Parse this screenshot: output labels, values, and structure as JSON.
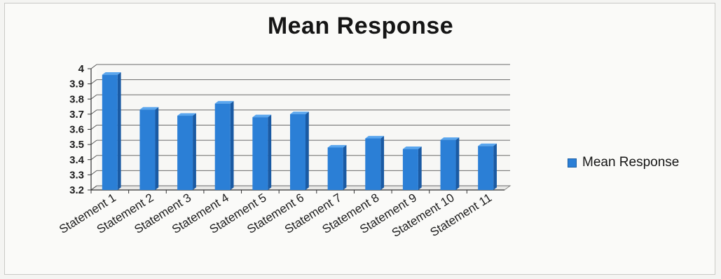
{
  "chart_data": {
    "type": "bar",
    "title": "Mean Response",
    "xlabel": "",
    "ylabel": "",
    "categories": [
      "Statement 1",
      "Statement 2",
      "Statement 3",
      "Statement 4",
      "Statement 5",
      "Statement 6",
      "Statement 7",
      "Statement 8",
      "Statement 9",
      "Statement 10",
      "Statement 11"
    ],
    "series": [
      {
        "name": "Mean Response",
        "values": [
          3.96,
          3.73,
          3.69,
          3.77,
          3.68,
          3.7,
          3.48,
          3.54,
          3.47,
          3.53,
          3.49
        ]
      }
    ],
    "yticks": [
      "3.2",
      "3.3",
      "3.4",
      "3.5",
      "3.6",
      "3.7",
      "3.8",
      "3.9",
      "4"
    ],
    "ylim": [
      3.2,
      4.0
    ],
    "grid": true,
    "legend_position": "right",
    "colors": {
      "bar": "#2b7fd6",
      "bar_dark": "#1a5aa3",
      "bar_light": "#5aa6ee"
    }
  }
}
